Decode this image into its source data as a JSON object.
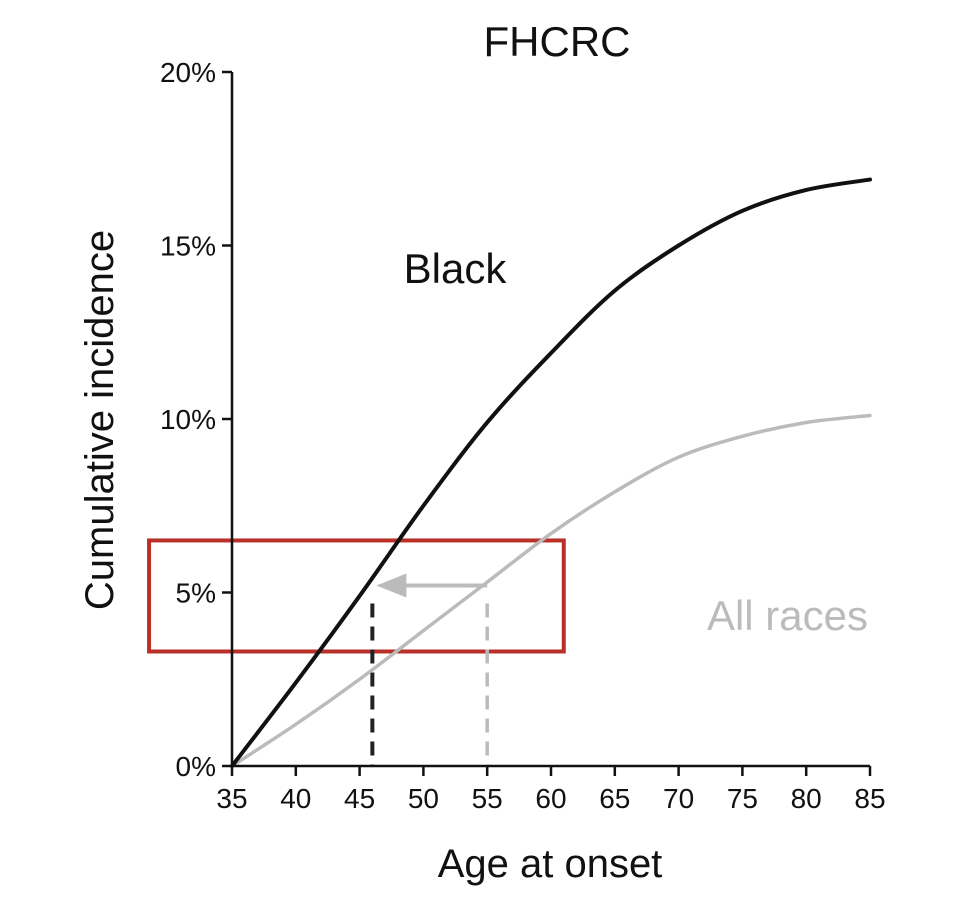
{
  "chart_data": {
    "type": "line",
    "title": "FHCRC",
    "xlabel": "Age at onset",
    "ylabel": "Cumulative incidence",
    "xlim": [
      35,
      85
    ],
    "ylim": [
      0,
      20
    ],
    "x_ticks": [
      "35",
      "40",
      "45",
      "50",
      "55",
      "60",
      "65",
      "70",
      "75",
      "80",
      "85"
    ],
    "y_ticks": [
      "0%",
      "5%",
      "10%",
      "15%",
      "20%"
    ],
    "grid": false,
    "series": [
      {
        "name": "Black",
        "color": "#111111",
        "x": [
          35,
          40,
          45,
          50,
          55,
          60,
          65,
          70,
          75,
          80,
          85
        ],
        "y": [
          0,
          2.4,
          4.9,
          7.5,
          9.9,
          11.9,
          13.7,
          15.0,
          16.0,
          16.6,
          16.9
        ]
      },
      {
        "name": "All races",
        "color": "#bbbbbb",
        "x": [
          35,
          40,
          45,
          50,
          55,
          60,
          65,
          70,
          75,
          80,
          85
        ],
        "y": [
          0,
          1.2,
          2.5,
          3.9,
          5.3,
          6.7,
          7.9,
          8.9,
          9.5,
          9.9,
          10.1
        ]
      }
    ],
    "annotations": {
      "target_y": 5.2,
      "black_age": 46,
      "all_races_age": 55,
      "arrow_color": "#bbbbbb",
      "highlight_box": {
        "x_range": [
          28.5,
          61
        ],
        "y_range": [
          3.3,
          6.5
        ],
        "color": "#b83028"
      }
    }
  }
}
